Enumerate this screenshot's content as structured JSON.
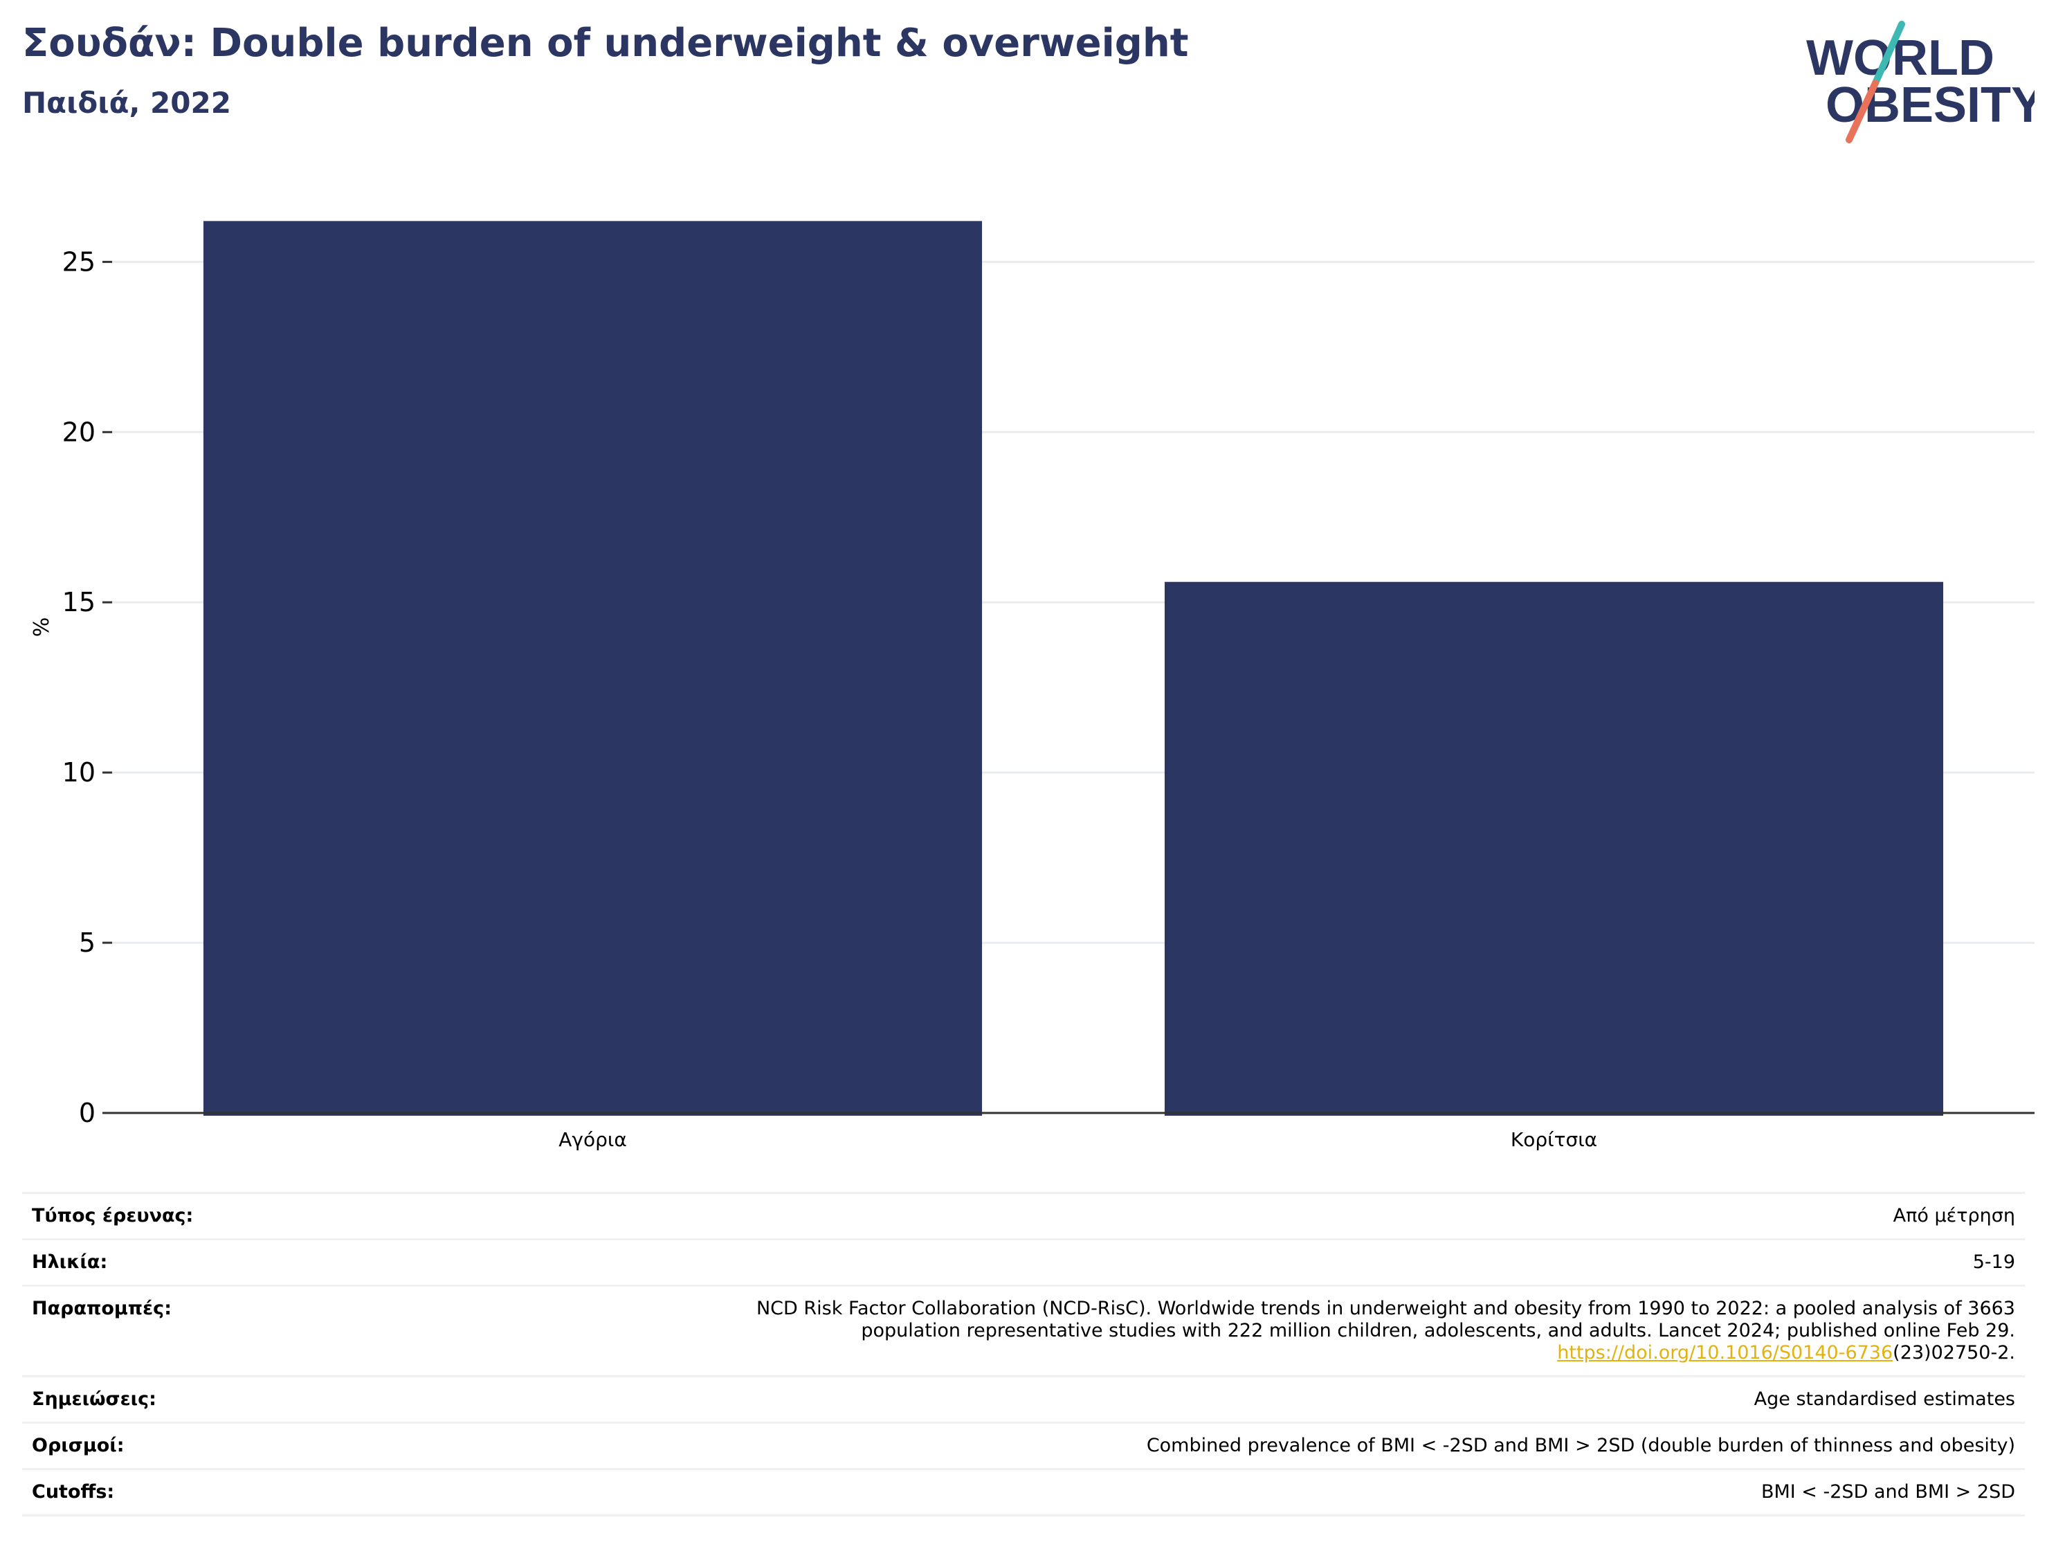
{
  "header": {
    "title": "Σουδάν: Double burden of underweight & overweight",
    "subtitle": "Παιδιά, 2022"
  },
  "logo": {
    "line1": "WORLD",
    "line2": "OBESITY",
    "colors": {
      "text": "#2b3663",
      "slash_top": "#3db8b2",
      "slash_bottom": "#e8735a"
    }
  },
  "chart_data": {
    "type": "bar",
    "categories": [
      "Αγόρια",
      "Κορίτσια"
    ],
    "values": [
      26.2,
      15.6
    ],
    "ylabel": "%",
    "ylim": [
      0,
      27
    ],
    "yticks": [
      0,
      5,
      10,
      15,
      20,
      25
    ],
    "grid": true,
    "bar_color": "#2b3663"
  },
  "info": {
    "rows": [
      {
        "label": "Τύπος έρευνας:",
        "value": "Από μέτρηση"
      },
      {
        "label": "Ηλικία:",
        "value": "5-19"
      },
      {
        "label": "Παραπομπές:",
        "value_lines": [
          "NCD Risk Factor Collaboration (NCD-RisC). Worldwide trends in underweight and obesity from 1990 to 2022: a pooled analysis of 3663",
          "population representative studies with 222 million children, adolescents, and adults. Lancet 2024; published online Feb 29."
        ],
        "link_text": "https://doi.org/10.1016/S0140-6736",
        "link_suffix": "(23)02750-2."
      },
      {
        "label": "Σημειώσεις:",
        "value": "Age standardised estimates"
      },
      {
        "label": "Ορισμοί:",
        "value": "Combined prevalence of BMI < -2SD and BMI > 2SD (double burden of thinness and obesity)"
      },
      {
        "label": "Cutoffs:",
        "value": "BMI < -2SD and BMI > 2SD"
      }
    ],
    "link_color": "#e2b20f"
  }
}
